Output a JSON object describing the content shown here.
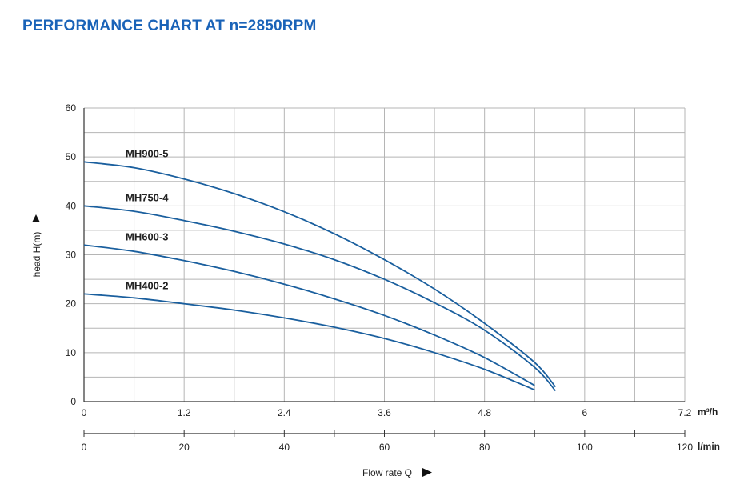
{
  "title": "PERFORMANCE CHART AT n=2850RPM",
  "chart_data": {
    "type": "line",
    "title": "PERFORMANCE CHART AT n=2850RPM",
    "ylabel": "head H(m)",
    "xlabel": "Flow rate Q",
    "ylim": [
      0,
      60
    ],
    "yticks": [
      "0",
      "10",
      "20",
      "30",
      "40",
      "50",
      "60"
    ],
    "xlim": [
      0,
      7.2
    ],
    "x_unit": "m³/h",
    "xticks": [
      "0",
      "1.2",
      "2.4",
      "3.6",
      "4.8",
      "6",
      "7.2"
    ],
    "x2lim": [
      0,
      120
    ],
    "x2_unit": "l/min",
    "x2ticks": [
      "0",
      "20",
      "40",
      "60",
      "80",
      "100",
      "120"
    ],
    "grid": true,
    "series": [
      {
        "name": "MH900-5",
        "x": [
          0,
          0.6,
          1.2,
          1.8,
          2.4,
          3.0,
          3.6,
          4.2,
          4.8,
          5.4,
          5.65
        ],
        "y": [
          49,
          47.8,
          45.5,
          42.5,
          38.8,
          34.3,
          29.0,
          23.0,
          16.0,
          8.0,
          3.0
        ]
      },
      {
        "name": "MH750-4",
        "x": [
          0,
          0.6,
          1.2,
          1.8,
          2.4,
          3.0,
          3.6,
          4.2,
          4.8,
          5.4,
          5.65
        ],
        "y": [
          40,
          38.9,
          37.0,
          34.8,
          32.2,
          29.0,
          25.0,
          20.2,
          14.6,
          7.0,
          2.2
        ]
      },
      {
        "name": "MH600-3",
        "x": [
          0,
          0.6,
          1.2,
          1.8,
          2.4,
          3.0,
          3.6,
          4.2,
          4.8,
          5.4
        ],
        "y": [
          32,
          30.7,
          28.8,
          26.6,
          24.0,
          21.0,
          17.6,
          13.6,
          9.0,
          3.3
        ]
      },
      {
        "name": "MH400-2",
        "x": [
          0,
          0.6,
          1.2,
          1.8,
          2.4,
          3.0,
          3.6,
          4.2,
          4.8,
          5.4
        ],
        "y": [
          22,
          21.2,
          20.0,
          18.7,
          17.1,
          15.2,
          12.9,
          10.0,
          6.6,
          2.4
        ]
      }
    ],
    "line_color": "#1a5f9e",
    "grid_color": "#b5b5b5"
  }
}
